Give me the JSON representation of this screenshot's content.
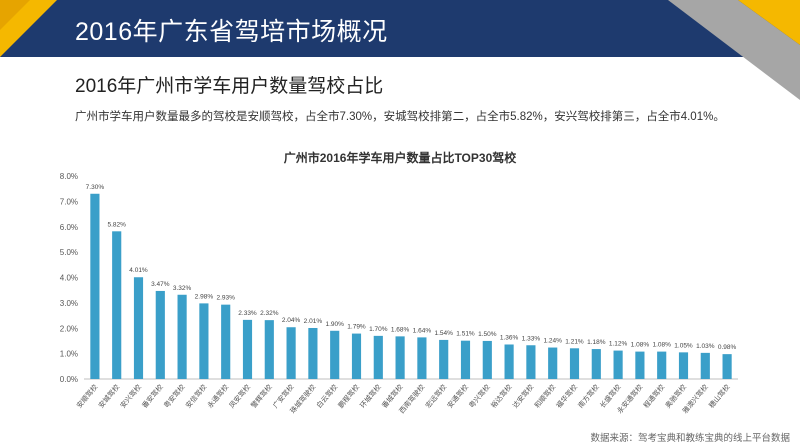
{
  "header": {
    "title": "2016年广东省驾培市场概况"
  },
  "section": {
    "subtitle": "2016年广州市学车用户数量驾校占比",
    "description": "广州市学车用户数量最多的驾校是安顺驾校，占全市7.30%，安城驾校排第二，占全市5.82%，安兴驾校排第三，占全市4.01%。"
  },
  "colors": {
    "header_bg": "#1e3a6e",
    "accent_yellow": "#f5b800",
    "bar": "#3a9fc9",
    "grey": "#a6a6a6"
  },
  "chart_data": {
    "type": "bar",
    "title": "广州市2016年学车用户数量占比TOP30驾校",
    "xlabel": "",
    "ylabel": "",
    "ylim": [
      0,
      8
    ],
    "ytick_labels": [
      "0.0%",
      "1.0%",
      "2.0%",
      "3.0%",
      "4.0%",
      "5.0%",
      "6.0%",
      "7.0%",
      "8.0%"
    ],
    "grid": false,
    "categories": [
      "安顺驾校",
      "安城驾校",
      "安兴驾校",
      "番安驾校",
      "粤安驾校",
      "安信驾校",
      "永通驾校",
      "凤安驾校",
      "警辉驾校",
      "广安驾校",
      "珠城驾驶校",
      "白云驾校",
      "鹏程驾校",
      "环城驾校",
      "番城驾校",
      "西南驾驶校",
      "宏远驾校",
      "安通驾校",
      "粤兴驾校",
      "裕达驾校",
      "达安驾校",
      "和顺驾校",
      "福华驾校",
      "南方驾校",
      "长盛驾校",
      "永安通驾校",
      "程通驾校",
      "奥驰驾校",
      "雅澳兴驾校",
      "穗山驾校"
    ],
    "values": [
      7.3,
      5.82,
      4.01,
      3.47,
      3.32,
      2.98,
      2.93,
      2.33,
      2.32,
      2.04,
      2.01,
      1.9,
      1.79,
      1.7,
      1.68,
      1.64,
      1.54,
      1.51,
      1.5,
      1.36,
      1.33,
      1.24,
      1.21,
      1.18,
      1.12,
      1.08,
      1.08,
      1.05,
      1.03,
      0.98
    ],
    "value_labels": [
      "7.30%",
      "5.82%",
      "4.01%",
      "3.47%",
      "3.32%",
      "2.98%",
      "2.93%",
      "2.33%",
      "2.32%",
      "2.04%",
      "2.01%",
      "1.90%",
      "1.79%",
      "1.70%",
      "1.68%",
      "1.64%",
      "1.54%",
      "1.51%",
      "1.50%",
      "1.36%",
      "1.33%",
      "1.24%",
      "1.21%",
      "1.18%",
      "1.12%",
      "1.08%",
      "1.08%",
      "1.05%",
      "1.03%",
      "0.98%"
    ]
  },
  "footer": {
    "source": "数据来源：驾考宝典和教练宝典的线上平台数据"
  }
}
